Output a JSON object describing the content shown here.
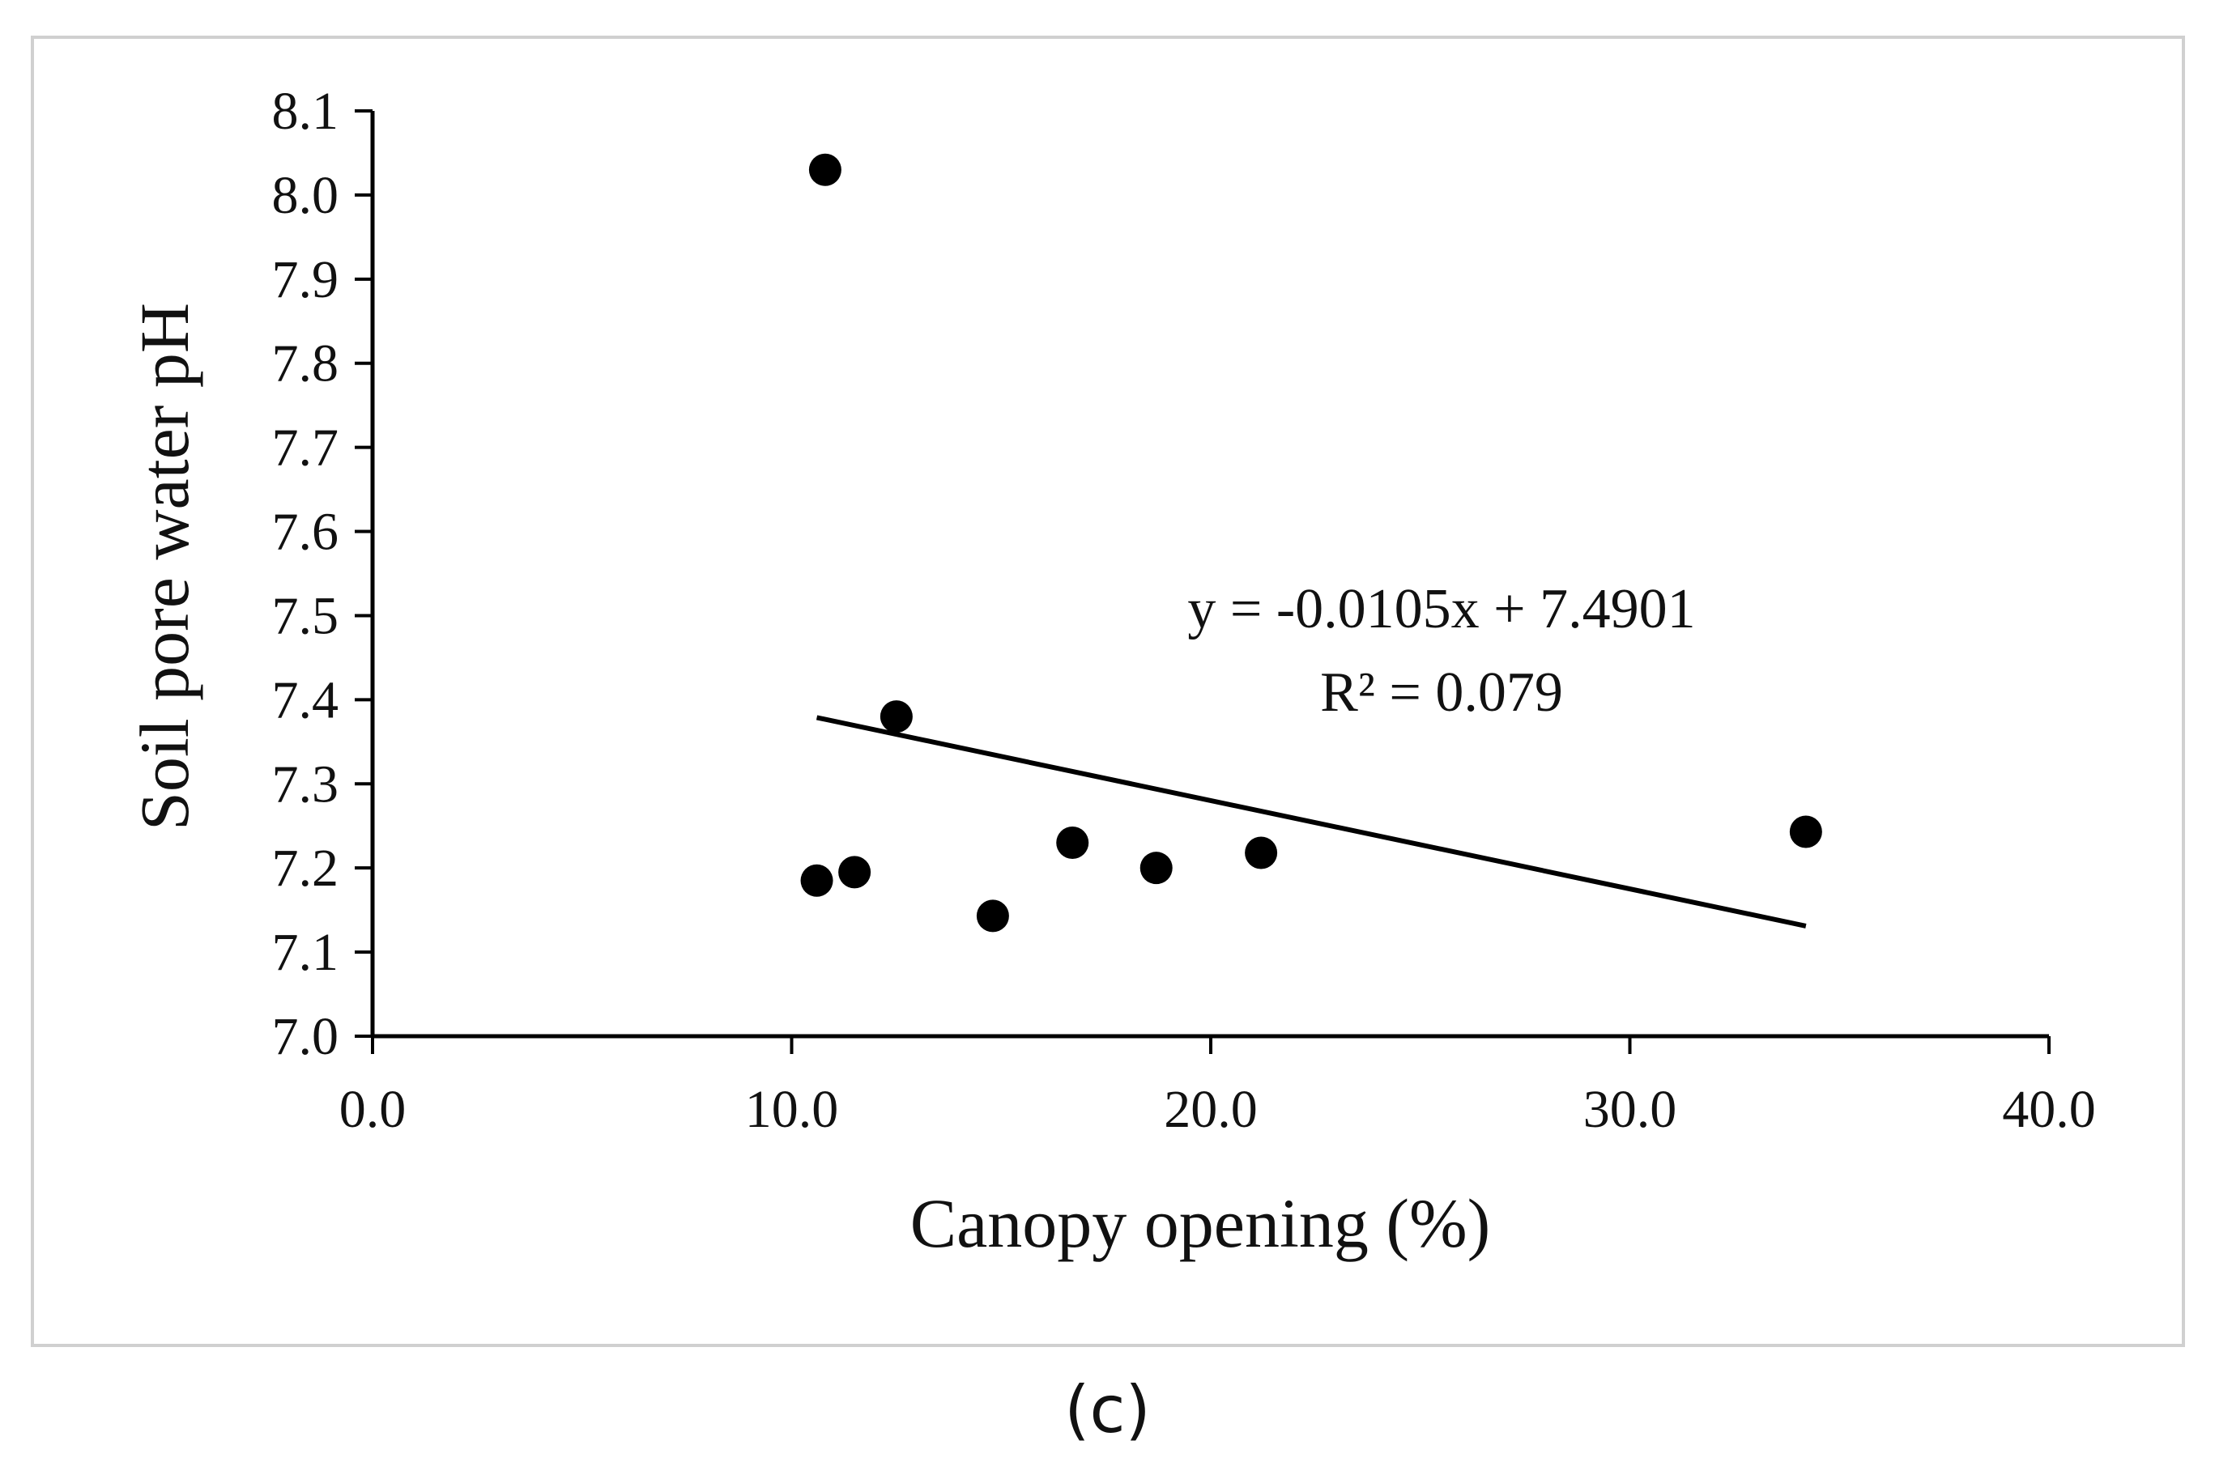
{
  "panel_label": "(c)",
  "chart_data": {
    "type": "scatter",
    "xlabel": "Canopy opening (%)",
    "ylabel": "Soil pore water pH",
    "xlim": [
      0,
      40
    ],
    "ylim": [
      7.0,
      8.1
    ],
    "x_ticks": [
      "0.0",
      "10.0",
      "20.0",
      "30.0",
      "40.0"
    ],
    "y_ticks": [
      "7.0",
      "7.1",
      "7.2",
      "7.3",
      "7.4",
      "7.5",
      "7.6",
      "7.7",
      "7.8",
      "7.9",
      "8.0",
      "8.1"
    ],
    "grid": false,
    "series": [
      {
        "points": [
          {
            "x": 10.8,
            "y": 8.03
          },
          {
            "x": 12.5,
            "y": 7.38
          },
          {
            "x": 10.6,
            "y": 7.185
          },
          {
            "x": 11.5,
            "y": 7.195
          },
          {
            "x": 14.8,
            "y": 7.143
          },
          {
            "x": 16.7,
            "y": 7.23
          },
          {
            "x": 18.7,
            "y": 7.2
          },
          {
            "x": 21.2,
            "y": 7.218
          },
          {
            "x": 34.2,
            "y": 7.243
          }
        ],
        "color": "#000000"
      }
    ],
    "trendline": {
      "slope": -0.0105,
      "intercept": 7.4901,
      "x_range": [
        10.6,
        34.2
      ],
      "color": "#000000"
    },
    "annotations": [
      "y = -0.0105x + 7.4901",
      "R² = 0.079"
    ]
  }
}
